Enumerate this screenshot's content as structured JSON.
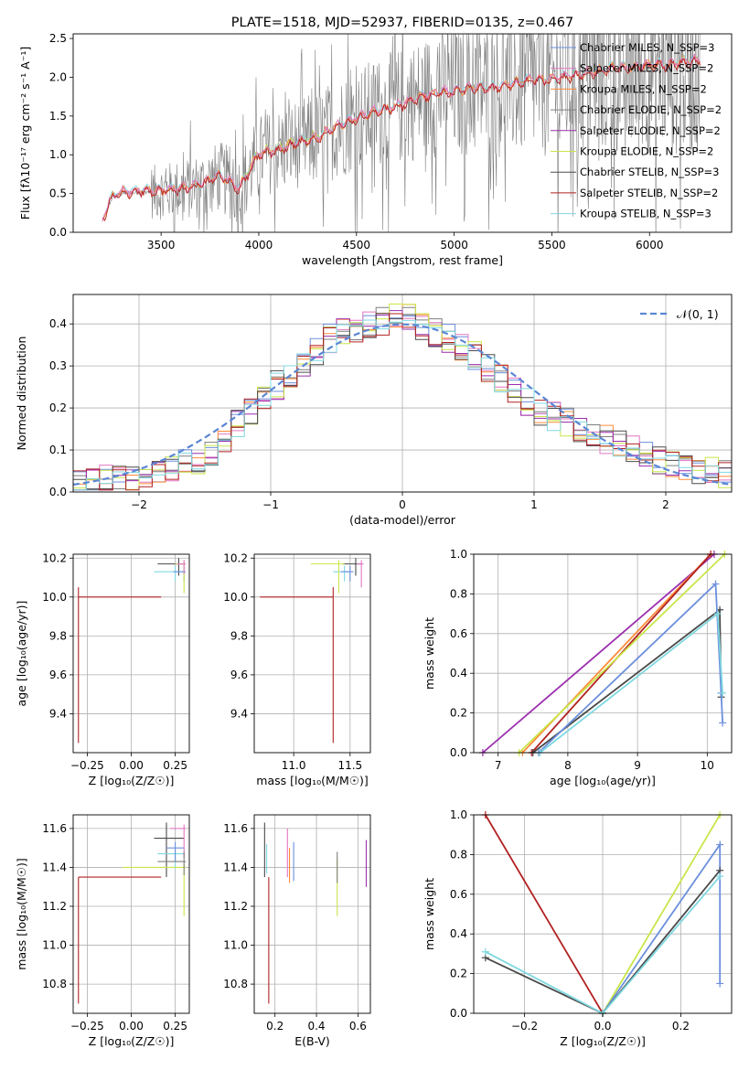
{
  "colors": {
    "chabrier_miles": "#6b8fdc",
    "salpeter_miles": "#e377c2",
    "kroupa_miles": "#ff8c3a",
    "chabrier_elodie": "#7f7f7f",
    "salpeter_elodie": "#9b2fae",
    "kroupa_elodie": "#c8e64a",
    "chabrier_stelib": "#4a4a4a",
    "salpeter_stelib": "#b22222",
    "kroupa_stelib": "#7fd8e0",
    "grid": "#b0b0b0",
    "normal": "#5b86d4"
  },
  "chart_data": [
    {
      "id": "spectrum",
      "type": "line",
      "title": "PLATE=1518, MJD=52937, FIBERID=0135, z=0.467",
      "xlabel": "wavelength [Angstrom, rest frame]",
      "ylabel": "Flux [f$_\\lambda$10$^{-17}$ erg cm$^{-2}$ s$^{-1}$ A$^{-1}$]",
      "ylabel_display": "Flux [fλ10⁻¹⁷ erg cm⁻² s⁻¹ A⁻¹]",
      "xlim": [
        3050,
        6420
      ],
      "ylim": [
        0,
        2.56
      ],
      "xticks": [
        3500,
        4000,
        4500,
        5000,
        5500,
        6000
      ],
      "yticks": [
        0.0,
        0.5,
        1.0,
        1.5,
        2.0,
        2.5
      ],
      "grid": false,
      "legend_placement": "upper-right",
      "legend": [
        "Chabrier MILES, N$_{SSP}$=3",
        "Salpeter MILES, N$_{SSP}$=2",
        "Kroupa MILES, N$_{SSP}$=2",
        "Chabrier ELODIE, N$_{SSP}$=2",
        "Salpeter ELODIE, N$_{SSP}$=2",
        "Kroupa ELODIE, N$_{SSP}$=2",
        "Chabrier STELIB, N$_{SSP}$=3",
        "Salpeter STELIB, N$_{SSP}$=2",
        "Kroupa STELIB, N$_{SSP}$=3"
      ],
      "legend_display": [
        "Chabrier MILES, N_SSP=3",
        "Salpeter MILES, N_SSP=2",
        "Kroupa MILES, N_SSP=2",
        "Chabrier ELODIE, N_SSP=2",
        "Salpeter ELODIE, N_SSP=2",
        "Kroupa ELODIE, N_SSP=2",
        "Chabrier STELIB, N_SSP=3",
        "Salpeter STELIB, N_SSP=2",
        "Kroupa STELIB, N_SSP=3"
      ],
      "model_continuum": {
        "x": [
          3200,
          3250,
          3300,
          3400,
          3500,
          3600,
          3700,
          3800,
          3900,
          4000,
          4100,
          4200,
          4300,
          4400,
          4500,
          4600,
          4700,
          4800,
          4900,
          5000,
          5100,
          5200,
          5300,
          5400,
          5500,
          5600,
          5700,
          5800,
          5900,
          6000,
          6100,
          6200,
          6260
        ],
        "y": [
          0.15,
          0.45,
          0.5,
          0.52,
          0.52,
          0.55,
          0.6,
          0.72,
          0.55,
          1.0,
          1.05,
          1.15,
          1.2,
          1.35,
          1.45,
          1.55,
          1.6,
          1.7,
          1.78,
          1.8,
          1.85,
          1.85,
          1.9,
          1.95,
          1.95,
          2.0,
          2.05,
          2.1,
          2.1,
          2.15,
          2.15,
          2.2,
          2.2
        ]
      },
      "data_noise_range": [
        3450,
        6260
      ]
    },
    {
      "id": "residual_hist",
      "type": "line",
      "xlabel": "(data-model)/error",
      "ylabel": "Normed distribution",
      "xlim": [
        -2.5,
        2.5
      ],
      "ylim": [
        0,
        0.47
      ],
      "xticks": [
        -2,
        -1,
        0,
        1,
        2
      ],
      "yticks": [
        0.0,
        0.1,
        0.2,
        0.3,
        0.4
      ],
      "grid": true,
      "legend": [
        "$\\mathcal{N}(0,1)$"
      ],
      "legend_display": [
        "𝒩(0, 1)"
      ],
      "legend_placement": "upper-right",
      "bin_width": 0.1,
      "hist_profile": {
        "x": [
          -2.5,
          -2.0,
          -1.5,
          -1.0,
          -0.5,
          0.0,
          0.5,
          1.0,
          1.5,
          2.0,
          2.5
        ],
        "y": [
          0.02,
          0.04,
          0.08,
          0.24,
          0.38,
          0.42,
          0.34,
          0.2,
          0.13,
          0.07,
          0.04
        ]
      }
    },
    {
      "id": "age_vs_Z",
      "type": "scatter",
      "xlabel": "Z [log$_{10}$($Z/Z_\\odot$)]",
      "ylabel": "age  [log$_{10}$($age/yr$)]",
      "xlabel_display": "Z [log₁₀(Z/Z☉)]",
      "ylabel_display": "age  [log₁₀(age/yr)]",
      "xlim": [
        -0.33,
        0.33
      ],
      "ylim": [
        9.2,
        10.22
      ],
      "xticks": [
        -0.25,
        0.0,
        0.25
      ],
      "xtick_labels": [
        "−0.25",
        "0.00",
        "0.25"
      ],
      "yticks": [
        9.4,
        9.6,
        9.8,
        10.0,
        10.2
      ],
      "grid": true,
      "errorbars": [
        {
          "series": "salpeter_stelib",
          "x": -0.3,
          "y": 10.0,
          "xerr": [
            0.0,
            0.47
          ],
          "yerr": [
            0.75,
            0.05
          ]
        },
        {
          "series": "chabrier_stelib",
          "x": 0.27,
          "y": 10.17,
          "xerr": [
            0.12,
            0.03
          ],
          "yerr": [
            0.06,
            0.03
          ]
        },
        {
          "series": "kroupa_stelib",
          "x": 0.25,
          "y": 10.13,
          "xerr": [
            0.12,
            0.05
          ],
          "yerr": [
            0.05,
            0.03
          ]
        },
        {
          "series": "chabrier_miles",
          "x": 0.3,
          "y": 10.13,
          "xerr": [
            0.06,
            0.01
          ],
          "yerr": [
            0.05,
            0.03
          ]
        },
        {
          "series": "kroupa_elodie",
          "x": 0.3,
          "y": 10.17,
          "xerr": [
            0.05,
            0.01
          ],
          "yerr": [
            0.15,
            0.02
          ]
        },
        {
          "series": "salpeter_miles",
          "x": 0.3,
          "y": 10.17,
          "xerr": [
            0.04,
            0.01
          ],
          "yerr": [
            0.05,
            0.02
          ]
        }
      ]
    },
    {
      "id": "age_vs_mass",
      "type": "scatter",
      "xlabel": "mass [log$_{10}$($M/M_\\odot$)]",
      "xlabel_display": "mass [log₁₀(M/M☉)]",
      "xlim": [
        10.65,
        11.68
      ],
      "ylim": [
        9.2,
        10.22
      ],
      "xticks": [
        11.0,
        11.5
      ],
      "yticks": [
        9.4,
        9.6,
        9.8,
        10.0,
        10.2
      ],
      "grid": true,
      "errorbars": [
        {
          "series": "salpeter_stelib",
          "x": 11.35,
          "y": 10.0,
          "xerr": [
            0.65,
            0.0
          ],
          "yerr": [
            0.75,
            0.05
          ]
        },
        {
          "series": "chabrier_stelib",
          "x": 11.55,
          "y": 10.17,
          "xerr": [
            0.12,
            0.05
          ],
          "yerr": [
            0.06,
            0.03
          ]
        },
        {
          "series": "kroupa_stelib",
          "x": 11.45,
          "y": 10.13,
          "xerr": [
            0.1,
            0.05
          ],
          "yerr": [
            0.05,
            0.03
          ]
        },
        {
          "series": "chabrier_miles",
          "x": 11.5,
          "y": 10.13,
          "xerr": [
            0.08,
            0.03
          ],
          "yerr": [
            0.05,
            0.03
          ]
        },
        {
          "series": "kroupa_elodie",
          "x": 11.4,
          "y": 10.17,
          "xerr": [
            0.25,
            0.05
          ],
          "yerr": [
            0.15,
            0.02
          ]
        },
        {
          "series": "salpeter_miles",
          "x": 11.6,
          "y": 10.17,
          "xerr": [
            0.04,
            0.02
          ],
          "yerr": [
            0.12,
            0.02
          ]
        }
      ]
    },
    {
      "id": "weight_vs_age",
      "type": "line",
      "xlabel": "age  [log$_{10}$($age/yr$)]",
      "ylabel": "mass weight",
      "xlabel_display": "age  [log₁₀(age/yr)]",
      "xlim": [
        6.65,
        10.35
      ],
      "ylim": [
        0,
        1.0
      ],
      "xticks": [
        7,
        8,
        9,
        10
      ],
      "yticks": [
        0.0,
        0.2,
        0.4,
        0.6,
        0.8,
        1.0
      ],
      "grid": true,
      "series": [
        {
          "name": "salpeter_elodie",
          "x": [
            6.78,
            10.1
          ],
          "y": [
            0.0,
            1.0
          ]
        },
        {
          "name": "kroupa_miles",
          "x": [
            7.35,
            10.05
          ],
          "y": [
            0.0,
            1.0
          ]
        },
        {
          "name": "salpeter_stelib",
          "x": [
            7.48,
            10.05
          ],
          "y": [
            0.0,
            1.0
          ]
        },
        {
          "name": "kroupa_elodie",
          "x": [
            7.3,
            10.25
          ],
          "y": [
            0.0,
            1.0
          ]
        },
        {
          "name": "chabrier_stelib",
          "x": [
            7.5,
            10.18,
            10.2
          ],
          "y": [
            0.0,
            0.72,
            0.28
          ]
        },
        {
          "name": "chabrier_miles",
          "x": [
            7.58,
            10.12,
            10.2,
            10.22
          ],
          "y": [
            0.0,
            0.85,
            0.3,
            0.15
          ]
        },
        {
          "name": "kroupa_stelib",
          "x": [
            7.6,
            10.15,
            10.22
          ],
          "y": [
            0.0,
            0.7,
            0.3
          ]
        }
      ]
    },
    {
      "id": "mass_vs_Z",
      "type": "scatter",
      "xlabel": "Z [log$_{10}$($Z/Z_\\odot$)]",
      "ylabel": "mass [log$_{10}$($M/M_\\odot$)]",
      "xlabel_display": "Z [log₁₀(Z/Z☉)]",
      "ylabel_display": "mass [log₁₀(M/M☉)]",
      "xlim": [
        -0.33,
        0.33
      ],
      "ylim": [
        10.65,
        11.67
      ],
      "xticks": [
        -0.25,
        0.0,
        0.25
      ],
      "xtick_labels": [
        "−0.25",
        "0.00",
        "0.25"
      ],
      "yticks": [
        10.8,
        11.0,
        11.2,
        11.4,
        11.6
      ],
      "grid": true,
      "errorbars": [
        {
          "series": "salpeter_stelib",
          "x": -0.3,
          "y": 11.35,
          "xerr": [
            0.0,
            0.47
          ],
          "yerr": [
            0.65,
            0.0
          ]
        },
        {
          "series": "chabrier_stelib",
          "x": 0.2,
          "y": 11.55,
          "xerr": [
            0.07,
            0.1
          ],
          "yerr": [
            0.2,
            0.08
          ]
        },
        {
          "series": "salpeter_miles",
          "x": 0.3,
          "y": 11.6,
          "xerr": [
            0.08,
            0.01
          ],
          "yerr": [
            0.15,
            0.02
          ]
        },
        {
          "series": "kroupa_stelib",
          "x": 0.25,
          "y": 11.47,
          "xerr": [
            0.1,
            0.05
          ],
          "yerr": [
            0.08,
            0.02
          ]
        },
        {
          "series": "chabrier_miles",
          "x": 0.25,
          "y": 11.5,
          "xerr": [
            0.05,
            0.05
          ],
          "yerr": [
            0.07,
            0.03
          ]
        },
        {
          "series": "kroupa_elodie",
          "x": 0.3,
          "y": 11.4,
          "xerr": [
            0.35,
            0.01
          ],
          "yerr": [
            0.25,
            0.02
          ]
        },
        {
          "series": "chabrier_elodie",
          "x": 0.3,
          "y": 11.43,
          "xerr": [
            0.15,
            0.01
          ],
          "yerr": [
            0.07,
            0.05
          ]
        }
      ]
    },
    {
      "id": "mass_vs_ebv",
      "type": "scatter",
      "xlabel": "E(B-V)",
      "xlim": [
        0.1,
        0.66
      ],
      "ylim": [
        10.65,
        11.67
      ],
      "xticks": [
        0.2,
        0.4,
        0.6
      ],
      "yticks": [
        10.8,
        11.0,
        11.2,
        11.4,
        11.6
      ],
      "grid": true,
      "errorbars": [
        {
          "series": "salpeter_stelib",
          "x": 0.17,
          "y": 11.35,
          "xerr": [
            0.0,
            0.0
          ],
          "yerr": [
            0.65,
            0.0
          ]
        },
        {
          "series": "chabrier_stelib",
          "x": 0.15,
          "y": 11.55,
          "xerr": [
            0.0,
            0.0
          ],
          "yerr": [
            0.2,
            0.08
          ]
        },
        {
          "series": "kroupa_stelib",
          "x": 0.16,
          "y": 11.47,
          "xerr": [
            0.0,
            0.0
          ],
          "yerr": [
            0.1,
            0.05
          ]
        },
        {
          "series": "salpeter_miles",
          "x": 0.26,
          "y": 11.5,
          "xerr": [
            0.0,
            0.0
          ],
          "yerr": [
            0.15,
            0.1
          ]
        },
        {
          "series": "kroupa_miles",
          "x": 0.27,
          "y": 11.4,
          "xerr": [
            0.0,
            0.0
          ],
          "yerr": [
            0.08,
            0.1
          ]
        },
        {
          "series": "chabrier_miles",
          "x": 0.29,
          "y": 11.43,
          "xerr": [
            0.0,
            0.0
          ],
          "yerr": [
            0.1,
            0.1
          ]
        },
        {
          "series": "kroupa_elodie",
          "x": 0.5,
          "y": 11.35,
          "xerr": [
            0.0,
            0.0
          ],
          "yerr": [
            0.2,
            0.1
          ]
        },
        {
          "series": "chabrier_elodie",
          "x": 0.5,
          "y": 11.4,
          "xerr": [
            0.0,
            0.0
          ],
          "yerr": [
            0.08,
            0.08
          ]
        },
        {
          "series": "salpeter_elodie",
          "x": 0.64,
          "y": 11.42,
          "xerr": [
            0.0,
            0.0
          ],
          "yerr": [
            0.12,
            0.12
          ]
        }
      ]
    },
    {
      "id": "weight_vs_Z",
      "type": "line",
      "xlabel": "Z [log$_{10}$($Z/Z_\\odot$)]",
      "ylabel": "mass weight",
      "xlabel_display": "Z [log₁₀(Z/Z☉)]",
      "xlim": [
        -0.33,
        0.33
      ],
      "ylim": [
        0,
        1.0
      ],
      "xticks": [
        -0.2,
        0.0,
        0.2
      ],
      "xtick_labels": [
        "−0.2",
        "0.0",
        "0.2"
      ],
      "yticks": [
        0.0,
        0.2,
        0.4,
        0.6,
        0.8,
        1.0
      ],
      "grid": true,
      "series": [
        {
          "name": "salpeter_stelib",
          "x": [
            -0.3,
            0.0
          ],
          "y": [
            1.0,
            0.0
          ]
        },
        {
          "name": "kroupa_elodie",
          "x": [
            0.0,
            0.3
          ],
          "y": [
            0.0,
            1.0
          ]
        },
        {
          "name": "chabrier_miles",
          "x": [
            0.0,
            0.3,
            0.3
          ],
          "y": [
            0.0,
            0.85,
            0.15
          ]
        },
        {
          "name": "chabrier_stelib",
          "x": [
            -0.3,
            0.0,
            0.3
          ],
          "y": [
            0.28,
            0.0,
            0.72
          ]
        },
        {
          "name": "kroupa_stelib",
          "x": [
            -0.3,
            0.0,
            0.3
          ],
          "y": [
            0.31,
            0.0,
            0.69
          ]
        }
      ]
    }
  ]
}
